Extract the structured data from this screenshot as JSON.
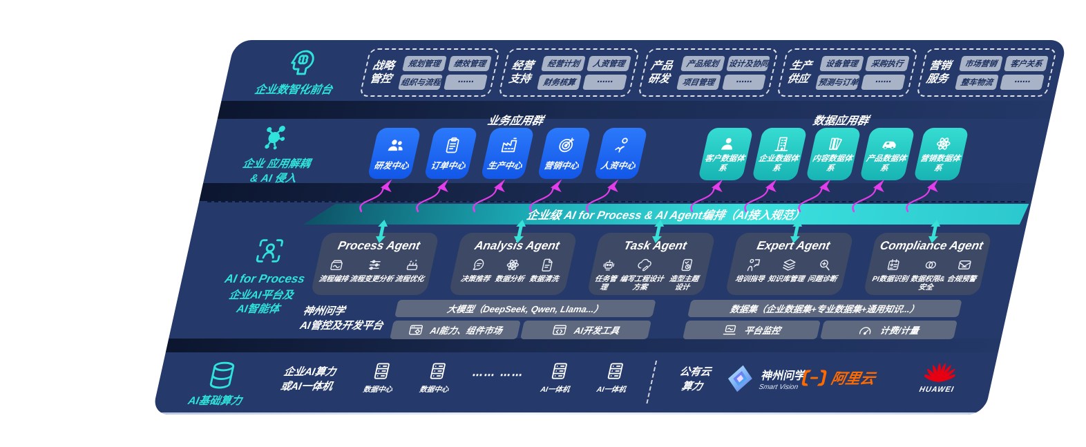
{
  "colors": {
    "navy": "#253a6b",
    "teal_accent": "#2fe3da",
    "magenta": "#e23de9",
    "blue_box": "#1e66f0",
    "teal_box": "#22c7bf",
    "aliyun_orange": "#ff6a00",
    "huawei_red": "#e60012"
  },
  "front_office": {
    "label": "企业数智化前台",
    "icon": "head-brain-icon",
    "groups": [
      {
        "name": "战略管控",
        "icon": null,
        "items": [
          {
            "label": "规划管理"
          },
          {
            "label": "绩效管理"
          },
          {
            "label": "组织与流程"
          },
          {
            "label": "⋯⋯"
          }
        ]
      },
      {
        "name": "经营支持",
        "icon": null,
        "items": [
          {
            "label": "经营计划"
          },
          {
            "label": "人资管理"
          },
          {
            "label": "财务核算"
          },
          {
            "label": "⋯⋯"
          }
        ]
      },
      {
        "name": "产品研发",
        "icon": null,
        "items": [
          {
            "label": "产品规划"
          },
          {
            "label": "设计及协同"
          },
          {
            "label": "项目管理"
          },
          {
            "label": "⋯⋯"
          }
        ]
      },
      {
        "name": "生产供应",
        "icon": null,
        "items": [
          {
            "label": "设备管理"
          },
          {
            "label": "采购执行"
          },
          {
            "label": "预测与订单"
          },
          {
            "label": "⋯⋯"
          }
        ]
      },
      {
        "name": "营销服务",
        "icon": null,
        "items": [
          {
            "label": "市场营销"
          },
          {
            "label": "客户关系"
          },
          {
            "label": "整车物流"
          },
          {
            "label": "⋯⋯"
          }
        ]
      }
    ]
  },
  "app_layer": {
    "label": "企业 应用解耦\n& AI 侵入",
    "icon": "molecule-icon",
    "business_group_title": "业务应用群",
    "business_apps": [
      {
        "label": "研发中心",
        "icon": "people-icon"
      },
      {
        "label": "订单中心",
        "icon": "clipboard-icon"
      },
      {
        "label": "生产中心",
        "icon": "factory-icon"
      },
      {
        "label": "营销中心",
        "icon": "target-icon"
      },
      {
        "label": "人资中心",
        "icon": "person-activity-icon"
      }
    ],
    "data_group_title": "数据应用群",
    "data_apps": [
      {
        "label": "客户数据体系",
        "icon": "person-icon"
      },
      {
        "label": "企业数据体系",
        "icon": "building-icon"
      },
      {
        "label": "内容数据体系",
        "icon": "books-icon"
      },
      {
        "label": "产品数据体系",
        "icon": "car-icon"
      },
      {
        "label": "营销数据体系",
        "icon": "atom-icon"
      }
    ]
  },
  "ai_band": {
    "title": "企业级 AI for Process & AI Agent编排（AI接入规范）"
  },
  "agent_layer": {
    "label_title": "AI for Process",
    "label_sub": "企业AI平台及\nAI智能体",
    "icon": "person-scan-icon",
    "agents": [
      {
        "name": "Process Agent",
        "items": [
          {
            "label": "流程编排",
            "icon": "box-wave-icon"
          },
          {
            "label": "流程变更分析",
            "icon": "sliders-icon"
          },
          {
            "label": "流程优化",
            "icon": "spark-box-icon"
          }
        ]
      },
      {
        "name": "Analysis Agent",
        "items": [
          {
            "label": "决策推荐",
            "icon": "head-chat-icon"
          },
          {
            "label": "数据分析",
            "icon": "atom-icon"
          },
          {
            "label": "数据清洗",
            "icon": "doc-clean-icon"
          }
        ]
      },
      {
        "name": "Task Agent",
        "items": [
          {
            "label": "任务管理",
            "icon": "robot-icon"
          },
          {
            "label": "编写工程设计方案",
            "icon": "cloud-edit-icon"
          },
          {
            "label": "造型主题设计",
            "icon": "tablet-check-icon"
          }
        ]
      },
      {
        "name": "Expert Agent",
        "items": [
          {
            "label": "培训指导",
            "icon": "training-icon"
          },
          {
            "label": "知识库管理",
            "icon": "layers-icon"
          },
          {
            "label": "问题诊断",
            "icon": "diagnose-icon"
          }
        ]
      },
      {
        "name": "Compliance Agent",
        "items": [
          {
            "label": "PI数据识别",
            "icon": "id-card-icon"
          },
          {
            "label": "数据权限&\n安全",
            "icon": "rings-icon"
          },
          {
            "label": "合规预警",
            "icon": "mail-alert-icon"
          }
        ]
      }
    ]
  },
  "platform": {
    "label": "神州问学\nAI管控及开发平台",
    "model_bar": "大模型（DeepSeek, Qwen, Llama...）",
    "model_cells": [
      {
        "label": "AI能力、组件市场",
        "icon": "window-gear-icon"
      },
      {
        "label": "AI开发工具",
        "icon": "window-code-icon"
      }
    ],
    "data_bar": "数据集（企业数据集+专业数据集+通用知识...）",
    "data_cells": [
      {
        "label": "平台监控",
        "icon": "laptop-icon"
      },
      {
        "label": "计费/计量",
        "icon": "gauge-icon"
      }
    ]
  },
  "infra": {
    "label": "AI基础算力",
    "icon": "database-icon",
    "compute_label": "企业AI算力\n或AI一体机",
    "nodes": [
      {
        "label": "数据中心",
        "icon": "server-icon"
      },
      {
        "label": "数据中心",
        "icon": "server-icon"
      },
      {
        "label": "AI一体机",
        "icon": "server-icon"
      },
      {
        "label": "AI一体机",
        "icon": "server-icon"
      }
    ],
    "dots": "⋯⋯ ⋯⋯",
    "cloud_label": "公有云\n算力",
    "vendors": {
      "smartvision": {
        "name": "神州问学",
        "sub": "Smart Vision",
        "icon": "smartvision-logo"
      },
      "aliyun": {
        "name": "阿里云",
        "icon": "aliyun-logo"
      },
      "huawei": {
        "name": "HUAWEI",
        "icon": "huawei-logo"
      }
    }
  }
}
